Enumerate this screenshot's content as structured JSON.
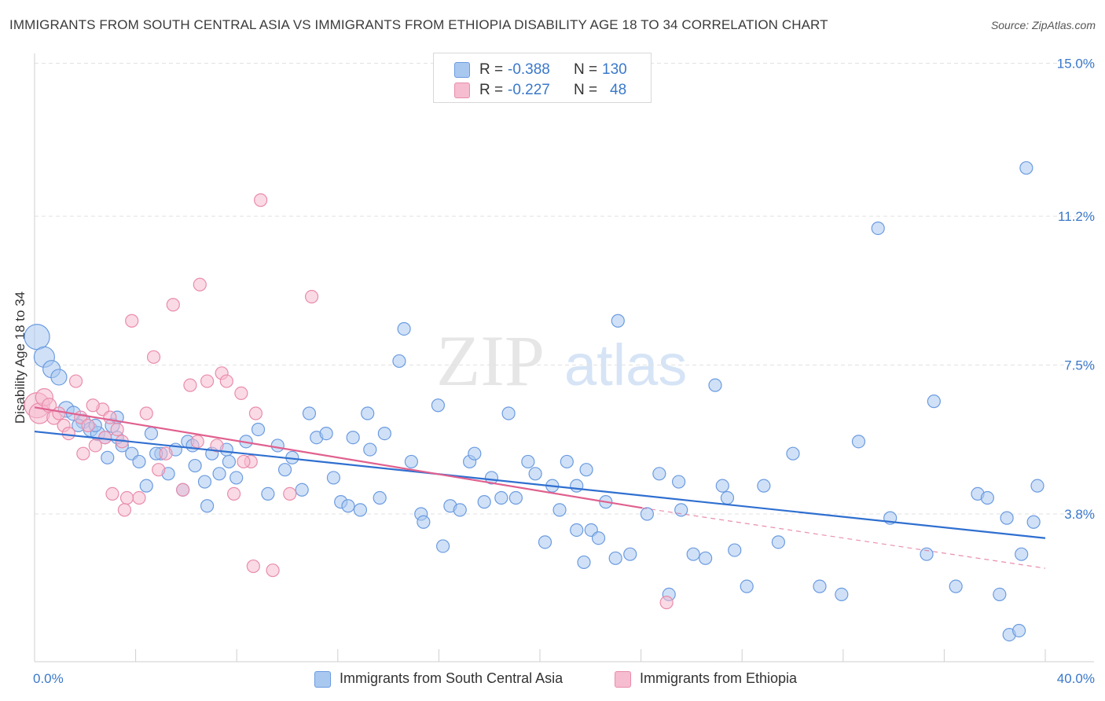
{
  "header": {
    "title": "IMMIGRANTS FROM SOUTH CENTRAL ASIA VS IMMIGRANTS FROM ETHIOPIA DISABILITY AGE 18 TO 34 CORRELATION CHART",
    "source": "Source: ZipAtlas.com"
  },
  "watermark": {
    "zip": "ZIP",
    "atlas": "atlas"
  },
  "legend": {
    "rows": [
      {
        "r_label": "R = ",
        "r_value": "-0.388",
        "n_label": "N = ",
        "n_value": "130"
      },
      {
        "r_label": "R = ",
        "r_value": "-0.227",
        "n_label": "N = ",
        "n_value": "48"
      }
    ]
  },
  "colors": {
    "blue_fill": "#a9c8f0",
    "blue_stroke": "#6b9be0",
    "blue_line": "#2f6fd0",
    "pink_fill": "#f6bcd0",
    "pink_stroke": "#e98cab",
    "pink_line": "#e0608e",
    "grid": "#e2e2e2",
    "axis_text": "#3a78c9"
  },
  "chart_data": {
    "type": "scatter",
    "title": "IMMIGRANTS FROM SOUTH CENTRAL ASIA VS IMMIGRANTS FROM ETHIOPIA DISABILITY AGE 18 TO 34 CORRELATION CHART",
    "xlabel": "",
    "ylabel": "Disability Age 18 to 34",
    "xlim": [
      0,
      40
    ],
    "ylim": [
      0,
      15.5
    ],
    "x_tick_labels": [
      {
        "value": 0,
        "label": "0.0%"
      },
      {
        "value": 40,
        "label": "40.0%"
      }
    ],
    "y_ticks": [
      {
        "value": 3.8,
        "label": "3.8%"
      },
      {
        "value": 7.5,
        "label": "7.5%"
      },
      {
        "value": 11.2,
        "label": "11.2%"
      },
      {
        "value": 15.0,
        "label": "15.0%"
      }
    ],
    "x_minor_ticks": [
      0,
      4,
      8,
      12,
      16,
      20,
      24,
      28,
      32,
      36,
      40
    ],
    "grid": true,
    "legend_position": "top-center",
    "series": [
      {
        "name": "Immigrants from South Central Asia",
        "color": "#a9c8f0",
        "trend": {
          "x0": 0,
          "y0": 5.85,
          "x1": 40,
          "y1": 3.2
        },
        "points": [
          [
            0.1,
            8.2,
            16
          ],
          [
            0.4,
            7.7,
            13
          ],
          [
            0.7,
            7.4,
            11
          ],
          [
            1.0,
            7.2,
            10
          ],
          [
            1.3,
            6.4,
            10
          ],
          [
            1.6,
            6.3,
            9
          ],
          [
            2.0,
            6.1,
            9
          ],
          [
            2.3,
            5.9,
            9
          ],
          [
            2.6,
            5.8,
            9
          ],
          [
            2.9,
            5.7,
            8
          ],
          [
            1.8,
            6.0,
            8
          ],
          [
            2.5,
            6.0,
            8
          ],
          [
            3.2,
            6.0,
            9
          ],
          [
            3.6,
            5.5,
            8
          ],
          [
            4.0,
            5.3,
            8
          ],
          [
            3.4,
            5.7,
            8
          ],
          [
            4.3,
            5.1,
            8
          ],
          [
            4.8,
            5.8,
            8
          ],
          [
            5.2,
            5.3,
            8
          ],
          [
            5.5,
            4.8,
            8
          ],
          [
            5.8,
            5.4,
            8
          ],
          [
            6.1,
            4.4,
            8
          ],
          [
            6.3,
            5.6,
            8
          ],
          [
            6.6,
            5.0,
            8
          ],
          [
            7.0,
            4.6,
            8
          ],
          [
            7.3,
            5.3,
            8
          ],
          [
            7.6,
            4.8,
            8
          ],
          [
            7.9,
            5.4,
            8
          ],
          [
            3.4,
            6.2,
            8
          ],
          [
            3.0,
            5.2,
            8
          ],
          [
            4.6,
            4.5,
            8
          ],
          [
            5.0,
            5.3,
            8
          ],
          [
            6.5,
            5.5,
            8
          ],
          [
            7.1,
            4.0,
            8
          ],
          [
            8.0,
            5.1,
            8
          ],
          [
            8.3,
            4.7,
            8
          ],
          [
            8.7,
            5.6,
            8
          ],
          [
            9.2,
            5.9,
            8
          ],
          [
            9.6,
            4.3,
            8
          ],
          [
            10.0,
            5.5,
            8
          ],
          [
            10.3,
            4.9,
            8
          ],
          [
            10.6,
            5.2,
            8
          ],
          [
            11.0,
            4.4,
            8
          ],
          [
            11.3,
            6.3,
            8
          ],
          [
            11.6,
            5.7,
            8
          ],
          [
            12.0,
            5.8,
            8
          ],
          [
            12.3,
            4.7,
            8
          ],
          [
            12.6,
            4.1,
            8
          ],
          [
            12.9,
            4.0,
            8
          ],
          [
            13.1,
            5.7,
            8
          ],
          [
            13.4,
            3.9,
            8
          ],
          [
            13.7,
            6.3,
            8
          ],
          [
            13.8,
            5.4,
            8
          ],
          [
            14.2,
            4.2,
            8
          ],
          [
            14.4,
            5.8,
            8
          ],
          [
            15.0,
            7.6,
            8
          ],
          [
            15.2,
            8.4,
            8
          ],
          [
            15.5,
            5.1,
            8
          ],
          [
            15.9,
            3.8,
            8
          ],
          [
            16.0,
            3.6,
            8
          ],
          [
            16.6,
            6.5,
            8
          ],
          [
            16.8,
            3.0,
            8
          ],
          [
            17.1,
            4.0,
            8
          ],
          [
            17.5,
            3.9,
            8
          ],
          [
            17.9,
            5.1,
            8
          ],
          [
            18.1,
            5.3,
            8
          ],
          [
            18.5,
            4.1,
            8
          ],
          [
            18.8,
            4.7,
            8
          ],
          [
            19.2,
            4.2,
            8
          ],
          [
            19.5,
            6.3,
            8
          ],
          [
            19.8,
            4.2,
            8
          ],
          [
            20.3,
            5.1,
            8
          ],
          [
            20.6,
            4.8,
            8
          ],
          [
            21.0,
            3.1,
            8
          ],
          [
            21.3,
            4.5,
            8
          ],
          [
            21.6,
            3.9,
            8
          ],
          [
            21.9,
            5.1,
            8
          ],
          [
            22.3,
            4.5,
            8
          ],
          [
            22.7,
            4.9,
            8
          ],
          [
            22.3,
            3.4,
            8
          ],
          [
            22.6,
            2.6,
            8
          ],
          [
            22.9,
            3.4,
            8
          ],
          [
            23.2,
            3.2,
            8
          ],
          [
            23.5,
            4.1,
            8
          ],
          [
            24.0,
            8.6,
            8
          ],
          [
            24.5,
            2.8,
            8
          ],
          [
            23.9,
            2.7,
            8
          ],
          [
            25.2,
            3.8,
            8
          ],
          [
            25.7,
            4.8,
            8
          ],
          [
            26.1,
            1.8,
            8
          ],
          [
            26.5,
            4.6,
            8
          ],
          [
            26.6,
            3.9,
            8
          ],
          [
            27.1,
            2.8,
            8
          ],
          [
            27.6,
            2.7,
            8
          ],
          [
            28.0,
            7.0,
            8
          ],
          [
            28.3,
            4.5,
            8
          ],
          [
            28.8,
            2.9,
            8
          ],
          [
            28.5,
            4.2,
            8
          ],
          [
            29.3,
            2.0,
            8
          ],
          [
            30.0,
            4.5,
            8
          ],
          [
            30.6,
            3.1,
            8
          ],
          [
            31.2,
            5.3,
            8
          ],
          [
            32.3,
            2.0,
            8
          ],
          [
            33.2,
            1.8,
            8
          ],
          [
            33.9,
            5.6,
            8
          ],
          [
            34.7,
            10.9,
            8
          ],
          [
            35.2,
            3.7,
            8
          ],
          [
            36.7,
            2.8,
            8
          ],
          [
            37.0,
            6.6,
            8
          ],
          [
            37.9,
            2.0,
            8
          ],
          [
            38.8,
            4.3,
            8
          ],
          [
            39.2,
            4.2,
            8
          ],
          [
            39.7,
            1.8,
            8
          ],
          [
            40.0,
            3.7,
            8
          ],
          [
            40.1,
            0.8,
            8
          ],
          [
            40.5,
            0.9,
            8
          ],
          [
            40.6,
            2.8,
            8
          ],
          [
            40.8,
            12.4,
            8
          ],
          [
            41.1,
            3.6,
            8
          ],
          [
            41.8,
            4.5,
            8
          ]
        ]
      },
      {
        "name": "Immigrants from Ethiopia",
        "color": "#f6bcd0",
        "trend": {
          "x0": 0,
          "y0": 6.45,
          "x1": 25.0,
          "y1": 3.95,
          "dash_to_x": 40,
          "dash_to_y": 2.45
        },
        "points": [
          [
            0.1,
            6.5,
            16
          ],
          [
            0.2,
            6.3,
            13
          ],
          [
            0.4,
            6.7,
            11
          ],
          [
            0.6,
            6.5,
            9
          ],
          [
            0.8,
            6.2,
            9
          ],
          [
            1.0,
            6.3,
            8
          ],
          [
            1.2,
            6.0,
            8
          ],
          [
            1.4,
            5.8,
            8
          ],
          [
            1.7,
            7.1,
            8
          ],
          [
            1.9,
            6.2,
            8
          ],
          [
            2.2,
            6.0,
            8
          ],
          [
            2.5,
            5.5,
            8
          ],
          [
            2.8,
            6.4,
            8
          ],
          [
            3.1,
            6.2,
            8
          ],
          [
            3.4,
            5.9,
            8
          ],
          [
            2.0,
            5.3,
            8
          ],
          [
            2.4,
            6.5,
            8
          ],
          [
            2.9,
            5.7,
            8
          ],
          [
            3.2,
            4.3,
            8
          ],
          [
            3.6,
            5.6,
            8
          ],
          [
            4.0,
            8.6,
            8
          ],
          [
            4.3,
            4.2,
            8
          ],
          [
            4.6,
            6.3,
            8
          ],
          [
            4.9,
            7.7,
            8
          ],
          [
            5.1,
            4.9,
            8
          ],
          [
            5.4,
            5.3,
            8
          ],
          [
            5.7,
            9.0,
            8
          ],
          [
            6.1,
            4.4,
            8
          ],
          [
            6.4,
            7.0,
            8
          ],
          [
            6.8,
            9.5,
            8
          ],
          [
            7.1,
            7.1,
            8
          ],
          [
            7.5,
            5.5,
            8
          ],
          [
            7.7,
            7.3,
            8
          ],
          [
            7.9,
            7.1,
            8
          ],
          [
            8.2,
            4.3,
            8
          ],
          [
            8.5,
            6.8,
            8
          ],
          [
            8.9,
            5.1,
            8
          ],
          [
            9.0,
            2.5,
            8
          ],
          [
            9.3,
            11.6,
            8
          ],
          [
            9.8,
            2.4,
            8
          ],
          [
            10.5,
            4.3,
            8
          ],
          [
            11.4,
            9.2,
            8
          ],
          [
            8.6,
            5.1,
            8
          ],
          [
            9.1,
            6.3,
            8
          ],
          [
            3.8,
            4.2,
            8
          ],
          [
            3.7,
            3.9,
            8
          ],
          [
            6.7,
            5.6,
            8
          ],
          [
            26.0,
            1.6,
            8
          ]
        ]
      }
    ]
  },
  "bottom_legend": [
    {
      "label": "Immigrants from South Central Asia"
    },
    {
      "label": "Immigrants from Ethiopia"
    }
  ]
}
